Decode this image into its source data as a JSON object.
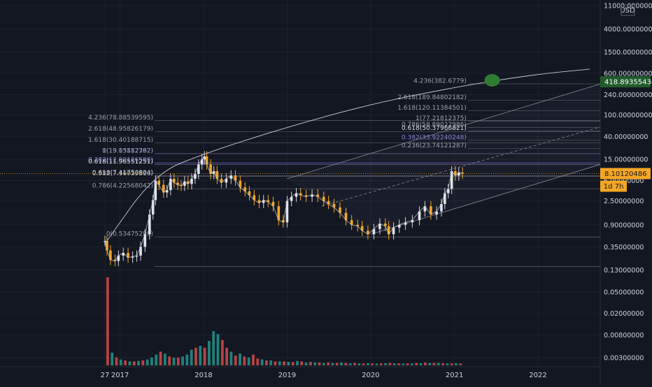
{
  "chart_data": {
    "type": "candlestick",
    "title": "",
    "currency_label": "USD",
    "y_scale": "log",
    "ylim": [
      0.003,
      11000
    ],
    "xlim": [
      "2016-10-27",
      "2022-09-30"
    ],
    "x_ticks": [
      {
        "label": "27",
        "date": "2016-10-27"
      },
      {
        "label": "2017",
        "date": "2017-01-01"
      },
      {
        "label": "2018",
        "date": "2018-01-01"
      },
      {
        "label": "2019",
        "date": "2019-01-01"
      },
      {
        "label": "2020",
        "date": "2020-01-01"
      },
      {
        "label": "2021",
        "date": "2021-01-01"
      },
      {
        "label": "2022",
        "date": "2022-01-01"
      }
    ],
    "y_ticks": [
      {
        "label": "11000.00000000",
        "value": 11000
      },
      {
        "label": "4000.00000000",
        "value": 4000
      },
      {
        "label": "1500.00000000",
        "value": 1500
      },
      {
        "label": "600.00000000",
        "value": 600
      },
      {
        "label": "240.00000000",
        "value": 240
      },
      {
        "label": "100.00000000",
        "value": 100
      },
      {
        "label": "40.00000000",
        "value": 40
      },
      {
        "label": "15.00000000",
        "value": 15
      },
      {
        "label": "6.00000000",
        "value": 6
      },
      {
        "label": "2.50000000",
        "value": 2.5
      },
      {
        "label": "0.90000000",
        "value": 0.9
      },
      {
        "label": "0.35000000",
        "value": 0.35
      },
      {
        "label": "0.13000000",
        "value": 0.13
      },
      {
        "label": "0.05000000",
        "value": 0.05
      },
      {
        "label": "0.02000000",
        "value": 0.02
      },
      {
        "label": "0.00800000",
        "value": 0.008
      },
      {
        "label": "0.00300000",
        "value": 0.003
      }
    ],
    "badges": [
      {
        "label": "418.89355434",
        "value": 418.89355434,
        "color": "#1f5c2a"
      },
      {
        "label": "8.10120486",
        "value": 8.10120486,
        "color": "#f5a623"
      },
      {
        "label": "1d 7h",
        "value": 6.5,
        "color": "#f5a623"
      }
    ],
    "price_series": [
      {
        "date": "2016-10-27",
        "value": 0.45
      },
      {
        "date": "2016-11-05",
        "value": 0.3
      },
      {
        "date": "2016-11-20",
        "value": 0.2
      },
      {
        "date": "2016-12-10",
        "value": 0.19
      },
      {
        "date": "2016-12-25",
        "value": 0.24
      },
      {
        "date": "2017-01-15",
        "value": 0.27
      },
      {
        "date": "2017-02-05",
        "value": 0.22
      },
      {
        "date": "2017-02-25",
        "value": 0.23
      },
      {
        "date": "2017-03-15",
        "value": 0.24
      },
      {
        "date": "2017-04-01",
        "value": 0.35
      },
      {
        "date": "2017-04-20",
        "value": 0.6
      },
      {
        "date": "2017-05-10",
        "value": 1.4
      },
      {
        "date": "2017-05-25",
        "value": 2.6
      },
      {
        "date": "2017-06-05",
        "value": 6.0
      },
      {
        "date": "2017-06-20",
        "value": 5.0
      },
      {
        "date": "2017-07-10",
        "value": 3.6
      },
      {
        "date": "2017-07-25",
        "value": 4.0
      },
      {
        "date": "2017-08-10",
        "value": 6.5
      },
      {
        "date": "2017-08-25",
        "value": 5.5
      },
      {
        "date": "2017-09-10",
        "value": 5.0
      },
      {
        "date": "2017-09-25",
        "value": 4.8
      },
      {
        "date": "2017-10-10",
        "value": 5.8
      },
      {
        "date": "2017-10-25",
        "value": 5.2
      },
      {
        "date": "2017-11-10",
        "value": 6.5
      },
      {
        "date": "2017-11-25",
        "value": 8.0
      },
      {
        "date": "2017-12-10",
        "value": 12.0
      },
      {
        "date": "2017-12-25",
        "value": 15.0
      },
      {
        "date": "2018-01-05",
        "value": 17.0
      },
      {
        "date": "2018-01-15",
        "value": 12.0
      },
      {
        "date": "2018-02-01",
        "value": 8.0
      },
      {
        "date": "2018-02-15",
        "value": 9.0
      },
      {
        "date": "2018-03-01",
        "value": 6.5
      },
      {
        "date": "2018-03-20",
        "value": 5.5
      },
      {
        "date": "2018-04-10",
        "value": 6.5
      },
      {
        "date": "2018-05-01",
        "value": 7.5
      },
      {
        "date": "2018-05-20",
        "value": 6.0
      },
      {
        "date": "2018-06-10",
        "value": 4.5
      },
      {
        "date": "2018-07-01",
        "value": 3.8
      },
      {
        "date": "2018-07-20",
        "value": 3.2
      },
      {
        "date": "2018-08-10",
        "value": 2.6
      },
      {
        "date": "2018-09-01",
        "value": 2.3
      },
      {
        "date": "2018-09-20",
        "value": 2.6
      },
      {
        "date": "2018-10-10",
        "value": 2.4
      },
      {
        "date": "2018-11-01",
        "value": 2.0
      },
      {
        "date": "2018-11-25",
        "value": 1.1
      },
      {
        "date": "2018-12-15",
        "value": 1.0
      },
      {
        "date": "2019-01-01",
        "value": 2.5
      },
      {
        "date": "2019-01-20",
        "value": 3.0
      },
      {
        "date": "2019-02-10",
        "value": 3.5
      },
      {
        "date": "2019-03-01",
        "value": 3.2
      },
      {
        "date": "2019-03-25",
        "value": 3.0
      },
      {
        "date": "2019-04-20",
        "value": 3.3
      },
      {
        "date": "2019-05-15",
        "value": 3.0
      },
      {
        "date": "2019-06-10",
        "value": 2.5
      },
      {
        "date": "2019-07-01",
        "value": 2.2
      },
      {
        "date": "2019-07-25",
        "value": 1.9
      },
      {
        "date": "2019-08-20",
        "value": 1.5
      },
      {
        "date": "2019-09-15",
        "value": 1.1
      },
      {
        "date": "2019-10-10",
        "value": 0.9
      },
      {
        "date": "2019-11-05",
        "value": 0.85
      },
      {
        "date": "2019-11-25",
        "value": 0.7
      },
      {
        "date": "2019-12-20",
        "value": 0.6
      },
      {
        "date": "2020-01-15",
        "value": 0.75
      },
      {
        "date": "2020-02-10",
        "value": 0.95
      },
      {
        "date": "2020-03-05",
        "value": 0.85
      },
      {
        "date": "2020-03-20",
        "value": 0.6
      },
      {
        "date": "2020-04-10",
        "value": 0.8
      },
      {
        "date": "2020-05-05",
        "value": 0.9
      },
      {
        "date": "2020-06-01",
        "value": 1.0
      },
      {
        "date": "2020-07-01",
        "value": 1.1
      },
      {
        "date": "2020-08-01",
        "value": 1.6
      },
      {
        "date": "2020-08-25",
        "value": 2.0
      },
      {
        "date": "2020-09-20",
        "value": 1.4
      },
      {
        "date": "2020-10-15",
        "value": 1.6
      },
      {
        "date": "2020-11-05",
        "value": 2.2
      },
      {
        "date": "2020-11-20",
        "value": 3.5
      },
      {
        "date": "2020-12-05",
        "value": 4.2
      },
      {
        "date": "2020-12-20",
        "value": 9.0
      },
      {
        "date": "2021-01-05",
        "value": 7.5
      },
      {
        "date": "2021-01-20",
        "value": 8.5
      },
      {
        "date": "2021-02-05",
        "value": 8.1
      }
    ],
    "volume_series": {
      "labels": [],
      "values": [
        9,
        1.3,
        0.8,
        0.6,
        0.5,
        0.4,
        0.4,
        0.45,
        0.5,
        0.6,
        0.8,
        1.1,
        1.4,
        1.2,
        0.9,
        0.8,
        0.8,
        0.9,
        1.1,
        1.6,
        1.8,
        2.0,
        1.8,
        2.5,
        3.5,
        3.2,
        2.6,
        1.8,
        1.4,
        1.0,
        1.2,
        0.9,
        0.8,
        1.1,
        0.7,
        0.6,
        0.5,
        0.5,
        0.4,
        0.4,
        0.4,
        0.35,
        0.35,
        0.45,
        0.4,
        0.3,
        0.35,
        0.3,
        0.3,
        0.25,
        0.3,
        0.25,
        0.25,
        0.3,
        0.25,
        0.2,
        0.25,
        0.2,
        0.2,
        0.22,
        0.2,
        0.18,
        0.2,
        0.22,
        0.25,
        0.2,
        0.2,
        0.18,
        0.2,
        0.2,
        0.25,
        0.22,
        0.3,
        0.25,
        0.25,
        0.25,
        0.22,
        0.2,
        0.2,
        0.22,
        0.2
      ],
      "colors": [
        "red",
        "green",
        "red",
        "green",
        "red",
        "green",
        "red",
        "green",
        "red",
        "green",
        "green",
        "green",
        "red",
        "green",
        "red",
        "green",
        "red",
        "green",
        "green",
        "green",
        "red",
        "green",
        "red",
        "green",
        "green",
        "green",
        "red",
        "red",
        "green",
        "red",
        "green",
        "red",
        "green",
        "red",
        "red",
        "green",
        "red",
        "green",
        "red",
        "green",
        "red",
        "green",
        "red",
        "green",
        "red",
        "green",
        "red",
        "green",
        "red",
        "green",
        "red",
        "green",
        "red",
        "green",
        "red",
        "green",
        "red",
        "green",
        "red",
        "green",
        "red",
        "green",
        "red",
        "green",
        "red",
        "green",
        "red",
        "green",
        "red",
        "green",
        "red",
        "green",
        "red",
        "green",
        "red",
        "green",
        "red",
        "green",
        "red",
        "green",
        "red"
      ]
    },
    "fib_left": [
      {
        "label": "4.236(78.88539595)",
        "value": 78.88539595
      },
      {
        "label": "2.618(48.95826179)",
        "value": 48.95826179
      },
      {
        "label": "1.618(30.40188715)",
        "value": 30.40188715
      },
      {
        "label": "0(19.15887392)",
        "value": 19.15887392
      },
      {
        "label": "1(19.03112762)",
        "value": 19.03112762
      },
      {
        "label": "0.382(12.90126588)",
        "value": 12.90126588
      },
      {
        "label": "0.618(11.96551251)",
        "value": 11.96551251
      },
      {
        "label": "0.618(7.41750804)",
        "value": 7.41750804
      },
      {
        "label": "0.382(7.16035810)",
        "value": 7.1603581
      },
      {
        "label": "0.786(4.22568042)",
        "value": 4.22568042
      },
      {
        "label": "0(0.53475299)",
        "value": 0.53475299
      }
    ],
    "fib_right": [
      {
        "label": "4.236(382.6779)",
        "value": 382.6779
      },
      {
        "label": "2.618(189.84802182)",
        "value": 189.84802182
      },
      {
        "label": "1.618(120.11384501)",
        "value": 120.11384501
      },
      {
        "label": "1(77.21812375)",
        "value": 77.21812375
      },
      {
        "label": "0.786(58.89022986)",
        "value": 58.89022986
      },
      {
        "label": "0.618(50.37966821)",
        "value": 50.37966821
      },
      {
        "label": "0.382(33.92240248)",
        "value": 33.92240248
      },
      {
        "label": "0.236(23.74121287)",
        "value": 23.74121287
      }
    ],
    "annotations": {
      "arc": [
        {
          "date": "2016-10-27",
          "value": 0.4
        },
        {
          "date": "2017-06-01",
          "value": 8
        },
        {
          "date": "2018-01-01",
          "value": 19
        },
        {
          "date": "2019-01-01",
          "value": 60
        },
        {
          "date": "2020-01-01",
          "value": 160
        },
        {
          "date": "2021-01-01",
          "value": 330
        },
        {
          "date": "2021-12-01",
          "value": 560
        },
        {
          "date": "2022-08-15",
          "value": 720
        }
      ],
      "target_marker": {
        "date": "2021-06-15",
        "value": 418.89355434,
        "color": "#2e7d32"
      },
      "channel_upper": [
        {
          "date": "2019-01-01",
          "value": 6.5
        },
        {
          "date": "2022-09-30",
          "value": 380
        }
      ],
      "channel_lower": [
        {
          "date": "2020-01-01",
          "value": 0.6
        },
        {
          "date": "2022-09-30",
          "value": 12
        }
      ],
      "channel_mid": [
        {
          "date": "2019-06-01",
          "value": 2
        },
        {
          "date": "2022-09-30",
          "value": 60
        }
      ]
    }
  }
}
